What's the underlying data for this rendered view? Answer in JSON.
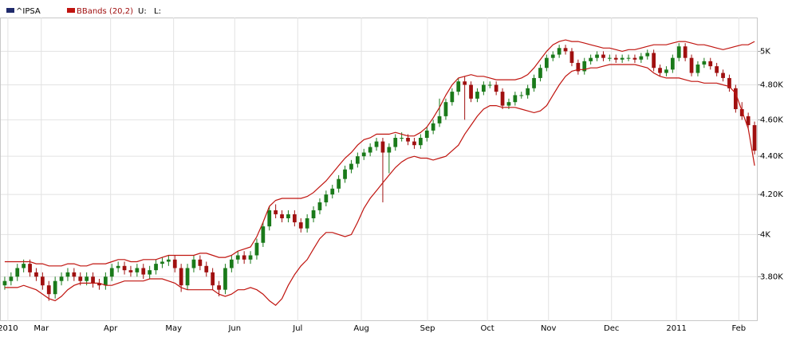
{
  "chart_data": {
    "type": "candlestick",
    "log_scale": true,
    "grid": true,
    "up_color": "#1a7a1a",
    "down_color": "#a01010",
    "band_labels": [
      "U:",
      "L:"
    ],
    "x": [
      0,
      1,
      2,
      3,
      4,
      5,
      6,
      7,
      8,
      9,
      10,
      11,
      12,
      13,
      14,
      15,
      16,
      17,
      18,
      19,
      20,
      21,
      22,
      23,
      24,
      25,
      26,
      27,
      28,
      29,
      30,
      31,
      32,
      33,
      34,
      35,
      36,
      37,
      38,
      39,
      40,
      41,
      42,
      43,
      44,
      45,
      46,
      47,
      48,
      49,
      50,
      51,
      52,
      53,
      54,
      55,
      56,
      57,
      58,
      59,
      60,
      61,
      62,
      63,
      64,
      65,
      66,
      67,
      68,
      69,
      70,
      71,
      72,
      73,
      74,
      75,
      76,
      77,
      78,
      79,
      80,
      81,
      82,
      83,
      84,
      85,
      86,
      87,
      88,
      89,
      90,
      91,
      92,
      93,
      94,
      95,
      96,
      97,
      98,
      99,
      100,
      101,
      102,
      103,
      104,
      105,
      106,
      107,
      108,
      109,
      110,
      111,
      112,
      113,
      114,
      115,
      116,
      117,
      118,
      119
    ],
    "xlim": [
      -0.5,
      119.5
    ],
    "xticks": [
      {
        "value": 0.5,
        "label": "2010"
      },
      {
        "value": 5.8,
        "label": "Mar"
      },
      {
        "value": 16.8,
        "label": "Apr"
      },
      {
        "value": 26.8,
        "label": "May"
      },
      {
        "value": 36.5,
        "label": "Jun"
      },
      {
        "value": 46.5,
        "label": "Jul"
      },
      {
        "value": 56.6,
        "label": "Aug"
      },
      {
        "value": 67.1,
        "label": "Sep"
      },
      {
        "value": 76.6,
        "label": "Oct"
      },
      {
        "value": 86.3,
        "label": "Nov"
      },
      {
        "value": 96.3,
        "label": "Dec"
      },
      {
        "value": 106.6,
        "label": "2011"
      },
      {
        "value": 116.5,
        "label": "Feb"
      }
    ],
    "ylim": [
      3600,
      5210
    ],
    "yticks": [
      {
        "value": 5000,
        "label": "5K"
      },
      {
        "value": 4800,
        "label": "4.80K"
      },
      {
        "value": 4600,
        "label": "4.60K"
      },
      {
        "value": 4400,
        "label": "4.40K"
      },
      {
        "value": 4200,
        "label": "4.20K"
      },
      {
        "value": 4000,
        "label": "4K"
      },
      {
        "value": 3800,
        "label": "3.80K"
      }
    ],
    "series": [
      {
        "name": "^IPSA",
        "color": "#1f2a6b",
        "open": [
          3760,
          3780,
          3800,
          3840,
          3860,
          3820,
          3800,
          3760,
          3720,
          3780,
          3800,
          3820,
          3800,
          3780,
          3800,
          3770,
          3760,
          3800,
          3840,
          3850,
          3830,
          3820,
          3840,
          3810,
          3830,
          3860,
          3870,
          3880,
          3840,
          3760,
          3840,
          3880,
          3850,
          3820,
          3760,
          3740,
          3840,
          3880,
          3900,
          3880,
          3900,
          3960,
          4040,
          4120,
          4100,
          4080,
          4100,
          4060,
          4030,
          4080,
          4120,
          4160,
          4200,
          4230,
          4280,
          4330,
          4360,
          4400,
          4420,
          4450,
          4480,
          4420,
          4450,
          4500,
          4500,
          4480,
          4460,
          4500,
          4540,
          4580,
          4620,
          4700,
          4760,
          4820,
          4800,
          4720,
          4760,
          4800,
          4800,
          4760,
          4680,
          4700,
          4740,
          4740,
          4780,
          4840,
          4900,
          4960,
          4980,
          5020,
          5000,
          4930,
          4880,
          4940,
          4960,
          4980,
          4960,
          4960,
          4950,
          4960,
          4960,
          4950,
          4970,
          4990,
          4900,
          4870,
          4890,
          4960,
          5030,
          4960,
          4870,
          4920,
          4940,
          4910,
          4870,
          4840,
          4780,
          4660,
          4620,
          4570
        ],
        "high": [
          3800,
          3820,
          3860,
          3880,
          3880,
          3840,
          3820,
          3780,
          3800,
          3820,
          3840,
          3840,
          3820,
          3820,
          3820,
          3790,
          3820,
          3860,
          3870,
          3870,
          3850,
          3860,
          3860,
          3850,
          3880,
          3890,
          3900,
          3900,
          3860,
          3860,
          3900,
          3900,
          3870,
          3840,
          3780,
          3860,
          3900,
          3920,
          3920,
          3920,
          3980,
          4060,
          4140,
          4150,
          4120,
          4120,
          4120,
          4080,
          4100,
          4140,
          4180,
          4220,
          4250,
          4300,
          4350,
          4380,
          4420,
          4440,
          4470,
          4500,
          4500,
          4470,
          4520,
          4530,
          4520,
          4500,
          4520,
          4560,
          4600,
          4720,
          4720,
          4780,
          4840,
          4850,
          4820,
          4780,
          4820,
          4820,
          4820,
          4780,
          4720,
          4760,
          4760,
          4800,
          4860,
          4920,
          4980,
          5000,
          5040,
          5040,
          5020,
          4950,
          4960,
          4980,
          5000,
          5000,
          4980,
          4980,
          4980,
          4980,
          4980,
          4990,
          5010,
          5010,
          4920,
          4910,
          4980,
          5050,
          5050,
          4980,
          4940,
          4960,
          4960,
          4930,
          4890,
          4860,
          4800,
          4700,
          4640,
          4590
        ],
        "low": [
          3740,
          3760,
          3780,
          3820,
          3800,
          3780,
          3740,
          3690,
          3700,
          3760,
          3780,
          3780,
          3760,
          3760,
          3750,
          3740,
          3740,
          3780,
          3820,
          3810,
          3800,
          3800,
          3790,
          3790,
          3810,
          3840,
          3850,
          3820,
          3730,
          3740,
          3820,
          3830,
          3800,
          3740,
          3710,
          3720,
          3820,
          3860,
          3860,
          3860,
          3880,
          3940,
          4020,
          4080,
          4060,
          4060,
          4040,
          4010,
          4010,
          4060,
          4100,
          4140,
          4180,
          4210,
          4260,
          4310,
          4340,
          4380,
          4400,
          4430,
          4160,
          4310,
          4430,
          4480,
          4460,
          4440,
          4440,
          4480,
          4520,
          4560,
          4600,
          4680,
          4740,
          4600,
          4700,
          4700,
          4740,
          4780,
          4740,
          4660,
          4660,
          4680,
          4720,
          4720,
          4760,
          4820,
          4880,
          4940,
          4960,
          4980,
          4910,
          4860,
          4860,
          4920,
          4940,
          4940,
          4940,
          4930,
          4930,
          4940,
          4930,
          4930,
          4950,
          4880,
          4850,
          4850,
          4870,
          4940,
          4940,
          4850,
          4850,
          4900,
          4890,
          4850,
          4820,
          4760,
          4640,
          4600,
          4550,
          4410
        ],
        "close": [
          3780,
          3800,
          3840,
          3860,
          3820,
          3800,
          3760,
          3720,
          3780,
          3800,
          3820,
          3800,
          3780,
          3800,
          3770,
          3760,
          3800,
          3840,
          3850,
          3830,
          3820,
          3840,
          3810,
          3830,
          3860,
          3870,
          3880,
          3840,
          3760,
          3840,
          3880,
          3850,
          3820,
          3760,
          3740,
          3840,
          3880,
          3900,
          3880,
          3900,
          3960,
          4040,
          4120,
          4100,
          4080,
          4100,
          4060,
          4030,
          4080,
          4120,
          4160,
          4200,
          4230,
          4280,
          4330,
          4360,
          4400,
          4420,
          4450,
          4480,
          4420,
          4450,
          4500,
          4500,
          4480,
          4460,
          4500,
          4540,
          4580,
          4620,
          4700,
          4760,
          4820,
          4800,
          4720,
          4760,
          4800,
          4800,
          4760,
          4680,
          4700,
          4740,
          4740,
          4780,
          4840,
          4900,
          4960,
          4980,
          5020,
          5000,
          4930,
          4880,
          4940,
          4960,
          4980,
          4960,
          4960,
          4950,
          4960,
          4960,
          4950,
          4970,
          4990,
          4900,
          4870,
          4890,
          4960,
          5030,
          4960,
          4870,
          4920,
          4940,
          4910,
          4870,
          4840,
          4780,
          4660,
          4620,
          4570,
          4430
        ]
      },
      {
        "name": "BBands (20,2)",
        "color": "#c0140f",
        "upper": [
          3870,
          3870,
          3870,
          3870,
          3870,
          3860,
          3860,
          3850,
          3850,
          3850,
          3860,
          3860,
          3850,
          3850,
          3860,
          3860,
          3860,
          3870,
          3880,
          3880,
          3870,
          3870,
          3880,
          3880,
          3880,
          3890,
          3900,
          3900,
          3900,
          3900,
          3900,
          3910,
          3910,
          3900,
          3890,
          3890,
          3900,
          3920,
          3930,
          3940,
          3990,
          4060,
          4140,
          4170,
          4180,
          4180,
          4180,
          4180,
          4190,
          4210,
          4240,
          4270,
          4310,
          4350,
          4390,
          4420,
          4460,
          4490,
          4500,
          4520,
          4520,
          4520,
          4530,
          4520,
          4510,
          4510,
          4530,
          4560,
          4610,
          4670,
          4740,
          4800,
          4840,
          4850,
          4860,
          4850,
          4850,
          4840,
          4830,
          4830,
          4830,
          4830,
          4840,
          4860,
          4900,
          4950,
          5000,
          5040,
          5060,
          5070,
          5060,
          5060,
          5050,
          5040,
          5030,
          5020,
          5020,
          5010,
          5000,
          5010,
          5010,
          5020,
          5030,
          5040,
          5040,
          5040,
          5050,
          5060,
          5060,
          5050,
          5040,
          5040,
          5030,
          5020,
          5010,
          5020,
          5030,
          5040,
          5040,
          5060
        ],
        "lower": [
          3750,
          3750,
          3750,
          3760,
          3750,
          3740,
          3720,
          3700,
          3690,
          3710,
          3740,
          3760,
          3770,
          3770,
          3770,
          3770,
          3760,
          3760,
          3770,
          3780,
          3780,
          3780,
          3780,
          3790,
          3790,
          3790,
          3780,
          3770,
          3750,
          3740,
          3740,
          3740,
          3740,
          3740,
          3720,
          3710,
          3720,
          3740,
          3740,
          3750,
          3740,
          3720,
          3690,
          3670,
          3700,
          3760,
          3810,
          3850,
          3880,
          3930,
          3980,
          4010,
          4010,
          4000,
          3990,
          4000,
          4060,
          4130,
          4180,
          4220,
          4260,
          4300,
          4340,
          4370,
          4390,
          4400,
          4390,
          4390,
          4380,
          4390,
          4400,
          4430,
          4460,
          4520,
          4570,
          4620,
          4660,
          4680,
          4680,
          4670,
          4670,
          4670,
          4660,
          4650,
          4640,
          4650,
          4680,
          4740,
          4800,
          4850,
          4880,
          4890,
          4890,
          4900,
          4900,
          4910,
          4920,
          4920,
          4920,
          4920,
          4920,
          4910,
          4900,
          4870,
          4850,
          4840,
          4840,
          4840,
          4830,
          4820,
          4820,
          4810,
          4810,
          4810,
          4800,
          4790,
          4750,
          4650,
          4550,
          4350
        ]
      }
    ]
  }
}
